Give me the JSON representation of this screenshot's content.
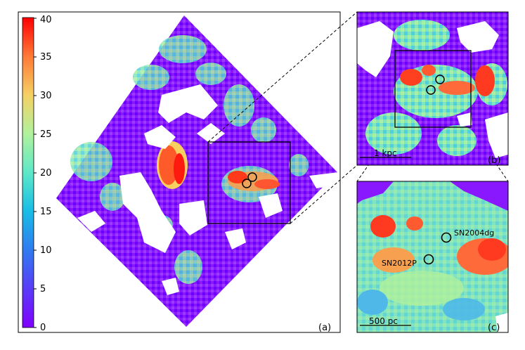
{
  "colorbar": {
    "ticks": [
      "0",
      "5",
      "10",
      "15",
      "20",
      "25",
      "30",
      "35",
      "40"
    ],
    "colors": [
      "#7f00ff",
      "#3a5bf5",
      "#19b8e8",
      "#5ee8c8",
      "#b7f09a",
      "#f7d060",
      "#ff8a3a",
      "#ff2a10",
      "#ff0000"
    ]
  },
  "panels": {
    "a": {
      "label": "(a)"
    },
    "b": {
      "label": "(b)",
      "scalebar": "1 kpc"
    },
    "c": {
      "label": "(c)",
      "scalebar": "500 pc",
      "sn1": "SN2004dg",
      "sn2": "SN2012P"
    }
  }
}
